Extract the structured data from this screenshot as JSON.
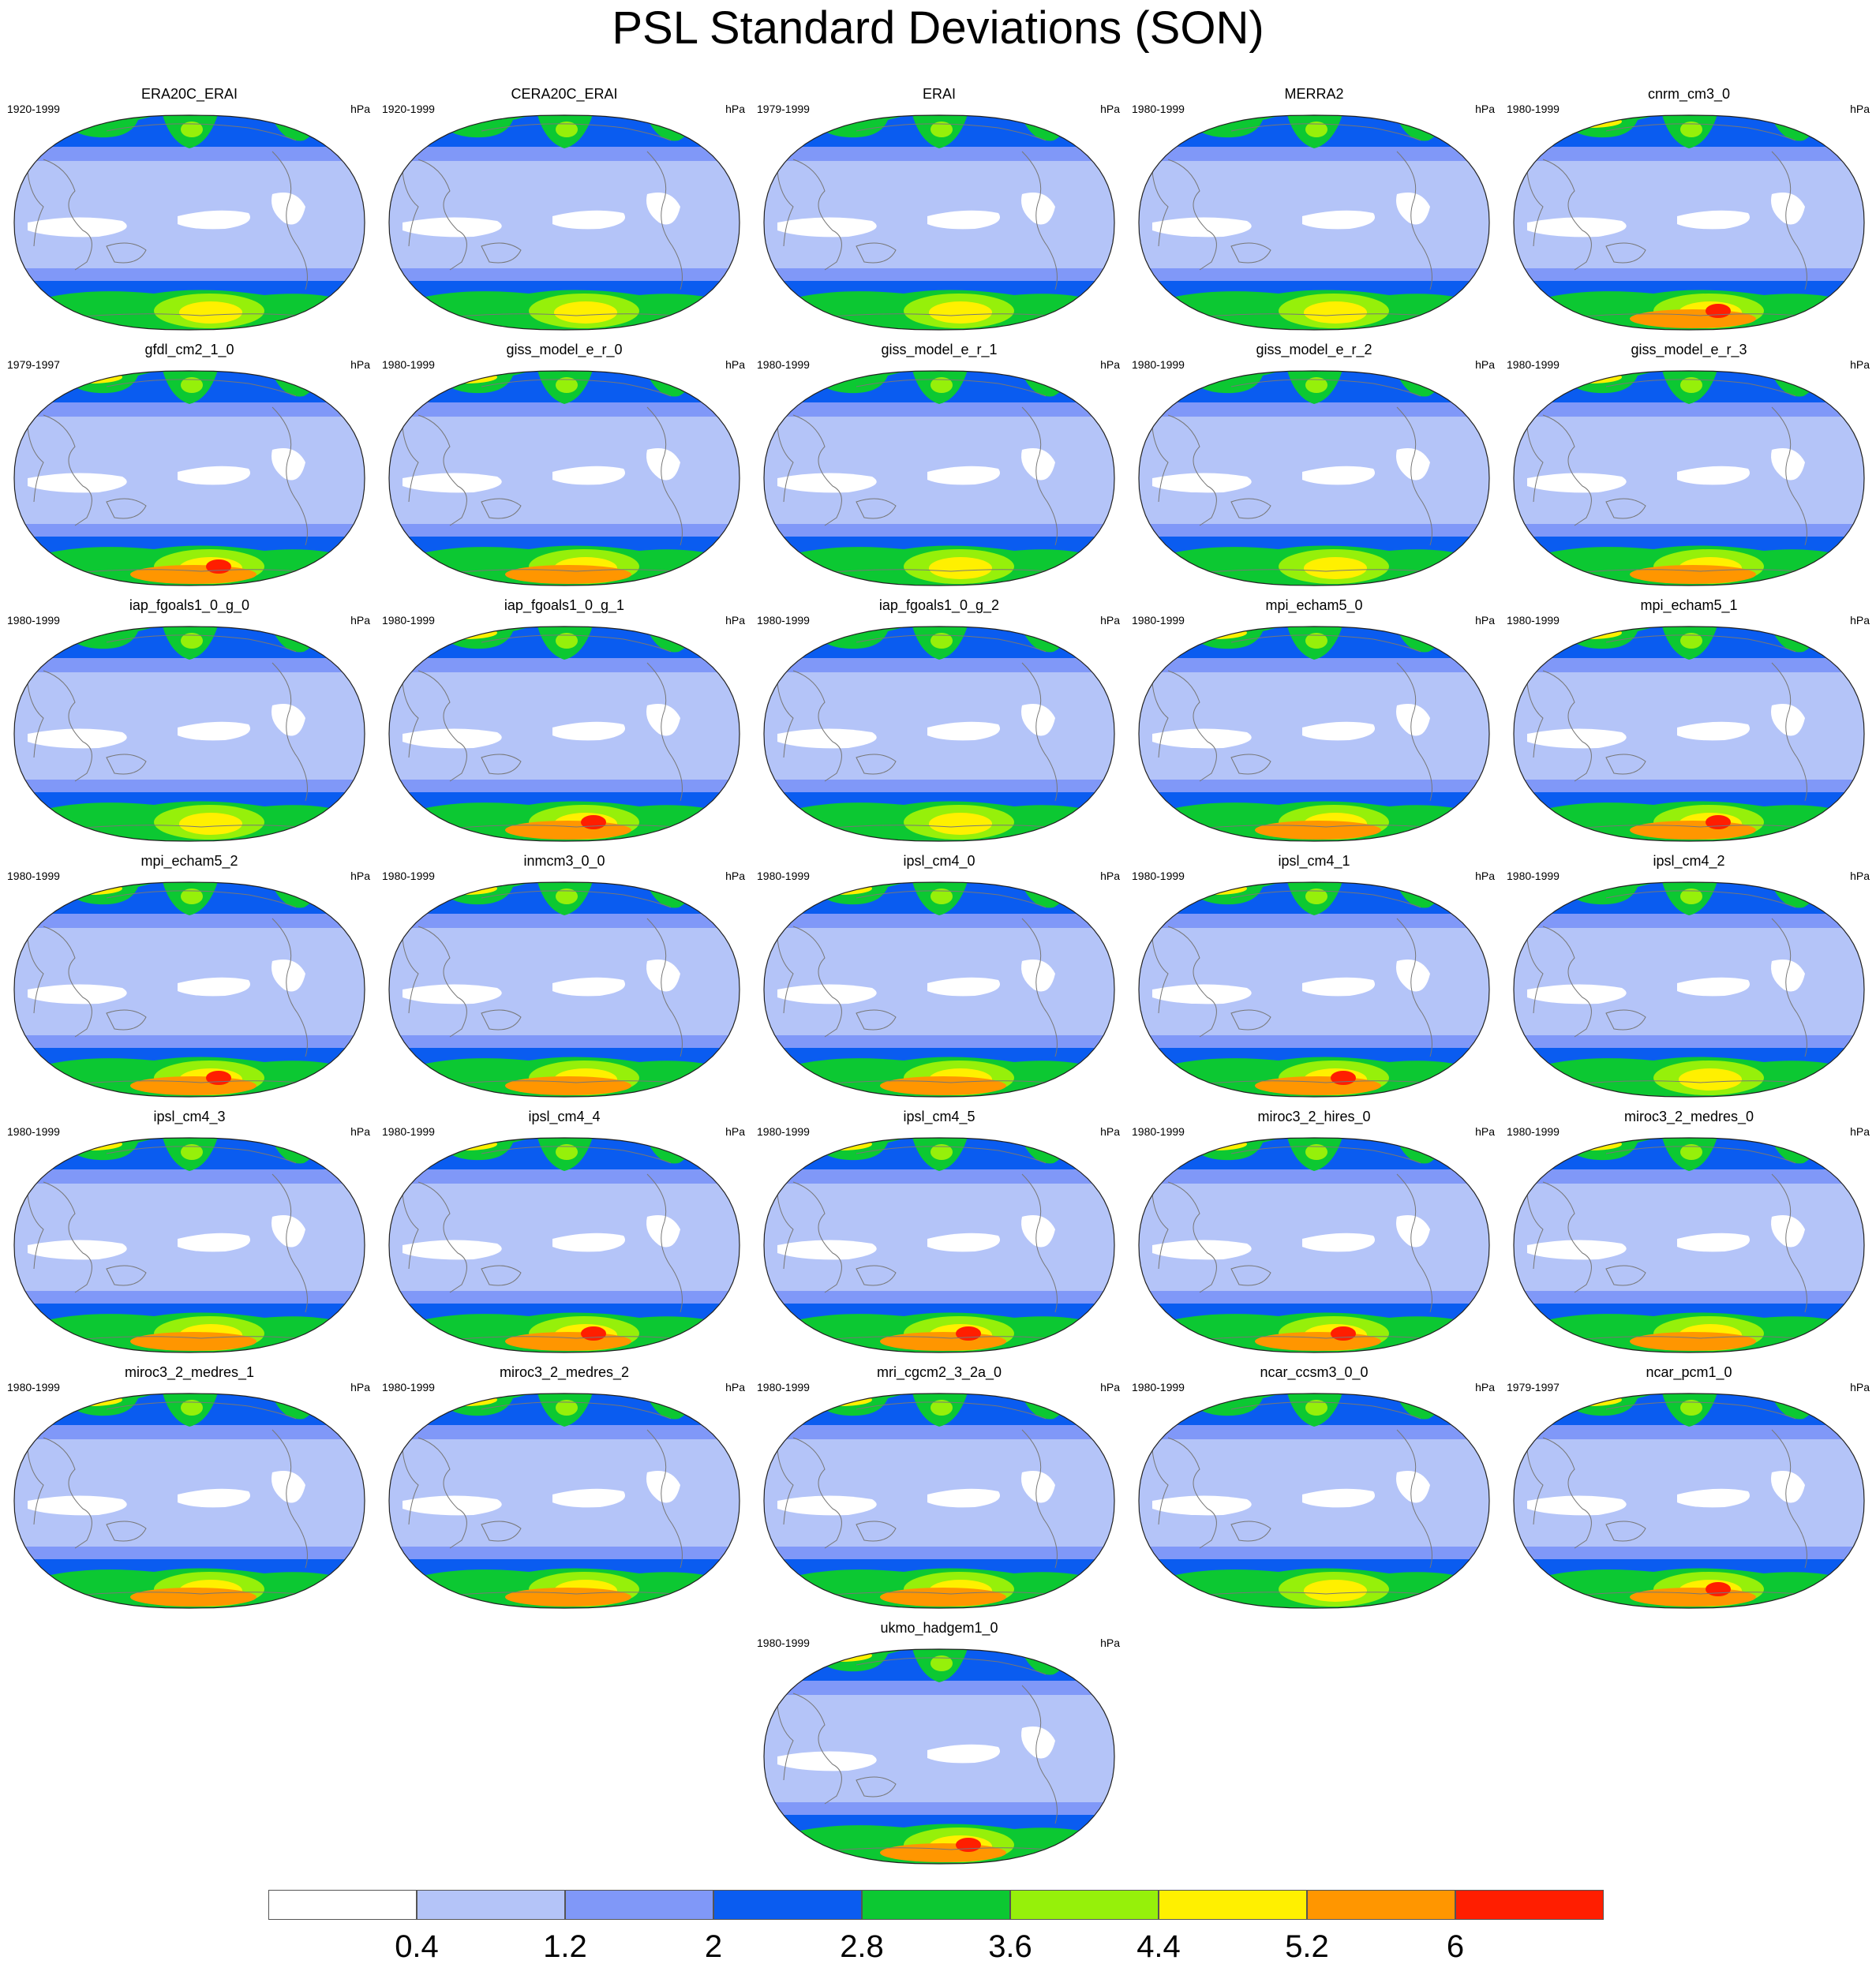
{
  "title": "PSL Standard Deviations (SON)",
  "units": "hPa",
  "colors": {
    "white": "#ffffff",
    "c1": "#b4c4f8",
    "c2": "#8098f8",
    "c3": "#0a5cf0",
    "c4": "#0cc832",
    "c5": "#96f00a",
    "c6": "#fff000",
    "c7": "#ff9600",
    "c8": "#ff1e00",
    "coast": "#777777"
  },
  "colorbar": {
    "colors": [
      "#ffffff",
      "#b4c4f8",
      "#8098f8",
      "#0a5cf0",
      "#0cc832",
      "#96f00a",
      "#fff000",
      "#ff9600",
      "#ff1e00"
    ],
    "labels": [
      "0.4",
      "1.2",
      "2",
      "2.8",
      "3.6",
      "4.4",
      "5.2",
      "6"
    ]
  },
  "panels": [
    {
      "title": "ERA20C_ERAI",
      "years": "1920-1999",
      "units": "hPa",
      "max_level": 6
    },
    {
      "title": "CERA20C_ERAI",
      "years": "1920-1999",
      "units": "hPa",
      "max_level": 5
    },
    {
      "title": "ERAI",
      "years": "1979-1999",
      "units": "hPa",
      "max_level": 6
    },
    {
      "title": "MERRA2",
      "years": "1980-1999",
      "units": "hPa",
      "max_level": 6
    },
    {
      "title": "cnrm_cm3_0",
      "years": "1980-1999",
      "units": "hPa",
      "max_level": 8
    },
    {
      "title": "gfdl_cm2_1_0",
      "years": "1979-1997",
      "units": "hPa",
      "max_level": 8
    },
    {
      "title": "giss_model_e_r_0",
      "years": "1980-1999",
      "units": "hPa",
      "max_level": 7
    },
    {
      "title": "giss_model_e_r_1",
      "years": "1980-1999",
      "units": "hPa",
      "max_level": 5
    },
    {
      "title": "giss_model_e_r_2",
      "years": "1980-1999",
      "units": "hPa",
      "max_level": 5
    },
    {
      "title": "giss_model_e_r_3",
      "years": "1980-1999",
      "units": "hPa",
      "max_level": 7
    },
    {
      "title": "iap_fgoals1_0_g_0",
      "years": "1980-1999",
      "units": "hPa",
      "max_level": 6
    },
    {
      "title": "iap_fgoals1_0_g_1",
      "years": "1980-1999",
      "units": "hPa",
      "max_level": 8
    },
    {
      "title": "iap_fgoals1_0_g_2",
      "years": "1980-1999",
      "units": "hPa",
      "max_level": 5
    },
    {
      "title": "mpi_echam5_0",
      "years": "1980-1999",
      "units": "hPa",
      "max_level": 7
    },
    {
      "title": "mpi_echam5_1",
      "years": "1980-1999",
      "units": "hPa",
      "max_level": 8
    },
    {
      "title": "mpi_echam5_2",
      "years": "1980-1999",
      "units": "hPa",
      "max_level": 8
    },
    {
      "title": "inmcm3_0_0",
      "years": "1980-1999",
      "units": "hPa",
      "max_level": 7
    },
    {
      "title": "ipsl_cm4_0",
      "years": "1980-1999",
      "units": "hPa",
      "max_level": 7
    },
    {
      "title": "ipsl_cm4_1",
      "years": "1980-1999",
      "units": "hPa",
      "max_level": 8
    },
    {
      "title": "ipsl_cm4_2",
      "years": "1980-1999",
      "units": "hPa",
      "max_level": 6
    },
    {
      "title": "ipsl_cm4_3",
      "years": "1980-1999",
      "units": "hPa",
      "max_level": 7
    },
    {
      "title": "ipsl_cm4_4",
      "years": "1980-1999",
      "units": "hPa",
      "max_level": 8
    },
    {
      "title": "ipsl_cm4_5",
      "years": "1980-1999",
      "units": "hPa",
      "max_level": 8
    },
    {
      "title": "miroc3_2_hires_0",
      "years": "1980-1999",
      "units": "hPa",
      "max_level": 8
    },
    {
      "title": "miroc3_2_medres_0",
      "years": "1980-1999",
      "units": "hPa",
      "max_level": 7
    },
    {
      "title": "miroc3_2_medres_1",
      "years": "1980-1999",
      "units": "hPa",
      "max_level": 7
    },
    {
      "title": "miroc3_2_medres_2",
      "years": "1980-1999",
      "units": "hPa",
      "max_level": 7
    },
    {
      "title": "mri_cgcm2_3_2a_0",
      "years": "1980-1999",
      "units": "hPa",
      "max_level": 7
    },
    {
      "title": "ncar_ccsm3_0_0",
      "years": "1980-1999",
      "units": "hPa",
      "max_level": 6
    },
    {
      "title": "ncar_pcm1_0",
      "years": "1979-1997",
      "units": "hPa",
      "max_level": 8
    },
    {
      "title": "ukmo_hadgem1_0",
      "years": "1980-1999",
      "units": "hPa",
      "max_level": 8
    }
  ]
}
